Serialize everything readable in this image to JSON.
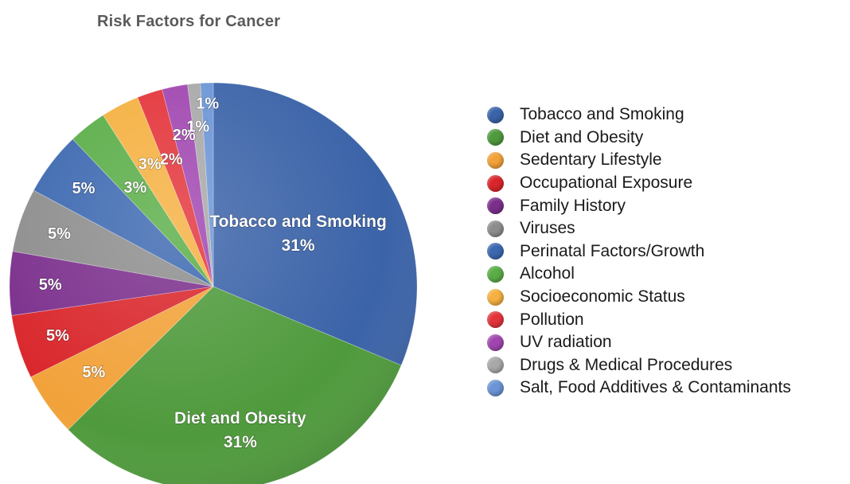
{
  "chart_data": {
    "type": "pie",
    "title": "Risk Factors for Cancer",
    "legend_position": "right",
    "slices": [
      {
        "name": "Tobacco and Smoking",
        "value": 31,
        "label": "31%",
        "color": "#3b63a8"
      },
      {
        "name": "Diet and Obesity",
        "value": 31,
        "label": "31%",
        "color": "#4f9a3c"
      },
      {
        "name": "Sedentary Lifestyle",
        "value": 5,
        "label": "5%",
        "color": "#f2a23a"
      },
      {
        "name": "Occupational Exposure",
        "value": 5,
        "label": "5%",
        "color": "#d9262b"
      },
      {
        "name": "Family History",
        "value": 5,
        "label": "5%",
        "color": "#7b2f8c"
      },
      {
        "name": "Viruses",
        "value": 5,
        "label": "5%",
        "color": "#8d8d8d"
      },
      {
        "name": "Perinatal Factors/Growth",
        "value": 5,
        "label": "5%",
        "color": "#3c68b0"
      },
      {
        "name": "Alcohol",
        "value": 3,
        "label": "3%",
        "color": "#5aad47"
      },
      {
        "name": "Socioeconomic Status",
        "value": 3,
        "label": "3%",
        "color": "#f5b040"
      },
      {
        "name": "Pollution",
        "value": 2,
        "label": "2%",
        "color": "#e3343a"
      },
      {
        "name": "UV radiation",
        "value": 2,
        "label": "2%",
        "color": "#a046b0"
      },
      {
        "name": "Drugs & Medical Procedures",
        "value": 1,
        "label": "1%",
        "color": "#a8a8a8"
      },
      {
        "name": "Salt, Food Additives & Contaminants",
        "value": 1,
        "label": "1%",
        "color": "#6b95d6"
      }
    ]
  }
}
